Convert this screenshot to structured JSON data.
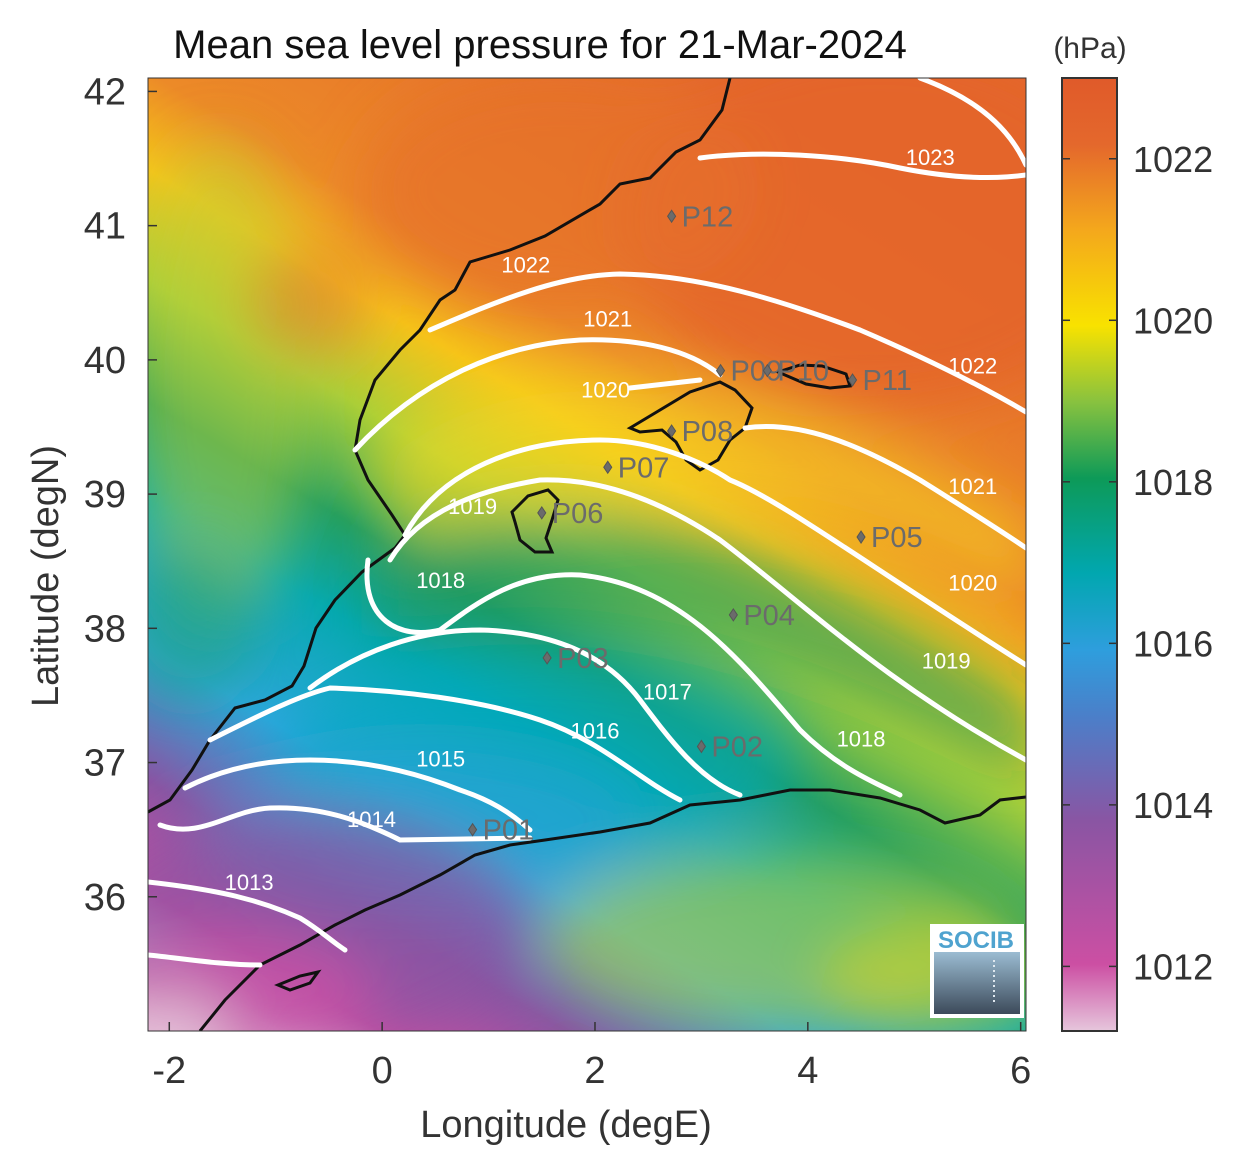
{
  "title": "Mean sea level pressure for 21-Mar-2024",
  "xlabel": "Longitude (degE)",
  "ylabel": "Latitude (degN)",
  "colorbar": {
    "unit": "(hPa)",
    "range": [
      1011.2,
      1023.0
    ],
    "ticks": [
      "1012",
      "1014",
      "1016",
      "1018",
      "1020",
      "1022"
    ],
    "colors": [
      "#e6c6dc",
      "#cc4fa3",
      "#8a55a3",
      "#2e9edd",
      "#01a7b0",
      "#0d9a58",
      "#88c23f",
      "#f8e200",
      "#f4a81c",
      "#e4682c"
    ]
  },
  "x_ticks": [
    "-2",
    "0",
    "2",
    "4",
    "6"
  ],
  "y_ticks": [
    "42",
    "41",
    "40",
    "39",
    "38",
    "37",
    "36"
  ],
  "xlim": [
    -2.2,
    6.05
  ],
  "ylim": [
    35.0,
    42.1
  ],
  "contours": [
    {
      "level": "1013",
      "label": "1013",
      "label_at": [
        -1.25,
        36.05
      ]
    },
    {
      "level": "1014",
      "label": "1014",
      "label_at": [
        -0.1,
        36.52
      ]
    },
    {
      "level": "1015",
      "label": "1015",
      "label_at": [
        0.55,
        36.97
      ]
    },
    {
      "level": "1016",
      "label": "1016",
      "label_at": [
        2.0,
        37.18
      ]
    },
    {
      "level": "1017",
      "label": "1017",
      "label_at": [
        2.68,
        37.47
      ]
    },
    {
      "level": "1018",
      "label": "1018",
      "label_at": [
        0.55,
        38.3
      ]
    },
    {
      "level": "1018",
      "label": "1018",
      "label_at": [
        4.5,
        37.12
      ]
    },
    {
      "level": "1019",
      "label": "1019",
      "label_at": [
        0.85,
        38.85
      ]
    },
    {
      "level": "1019",
      "label": "1019",
      "label_at": [
        5.3,
        37.7
      ]
    },
    {
      "level": "1020",
      "label": "1020",
      "label_at": [
        2.1,
        39.72
      ]
    },
    {
      "level": "1020",
      "label": "1020",
      "label_at": [
        5.55,
        38.28
      ]
    },
    {
      "level": "1021",
      "label": "1021",
      "label_at": [
        2.12,
        40.25
      ]
    },
    {
      "level": "1021",
      "label": "1021",
      "label_at": [
        5.55,
        39.0
      ]
    },
    {
      "level": "1022",
      "label": "1022",
      "label_at": [
        1.35,
        40.65
      ]
    },
    {
      "level": "1022",
      "label": "1022",
      "label_at": [
        5.55,
        39.9
      ]
    },
    {
      "level": "1023",
      "label": "1023",
      "label_at": [
        5.15,
        41.45
      ]
    }
  ],
  "stations": [
    {
      "name": "P01",
      "lon": 0.85,
      "lat": 36.5
    },
    {
      "name": "P02",
      "lon": 3.0,
      "lat": 37.12
    },
    {
      "name": "P03",
      "lon": 1.55,
      "lat": 37.78
    },
    {
      "name": "P04",
      "lon": 3.3,
      "lat": 38.1
    },
    {
      "name": "P05",
      "lon": 4.5,
      "lat": 38.68
    },
    {
      "name": "P06",
      "lon": 1.5,
      "lat": 38.86
    },
    {
      "name": "P07",
      "lon": 2.12,
      "lat": 39.2
    },
    {
      "name": "P08",
      "lon": 2.72,
      "lat": 39.47
    },
    {
      "name": "P09",
      "lon": 3.18,
      "lat": 39.92
    },
    {
      "name": "P10",
      "lon": 3.62,
      "lat": 39.92
    },
    {
      "name": "P11",
      "lon": 4.42,
      "lat": 39.85
    },
    {
      "name": "P12",
      "lon": 2.72,
      "lat": 41.07
    }
  ],
  "logo": {
    "text": "SOCIB"
  }
}
